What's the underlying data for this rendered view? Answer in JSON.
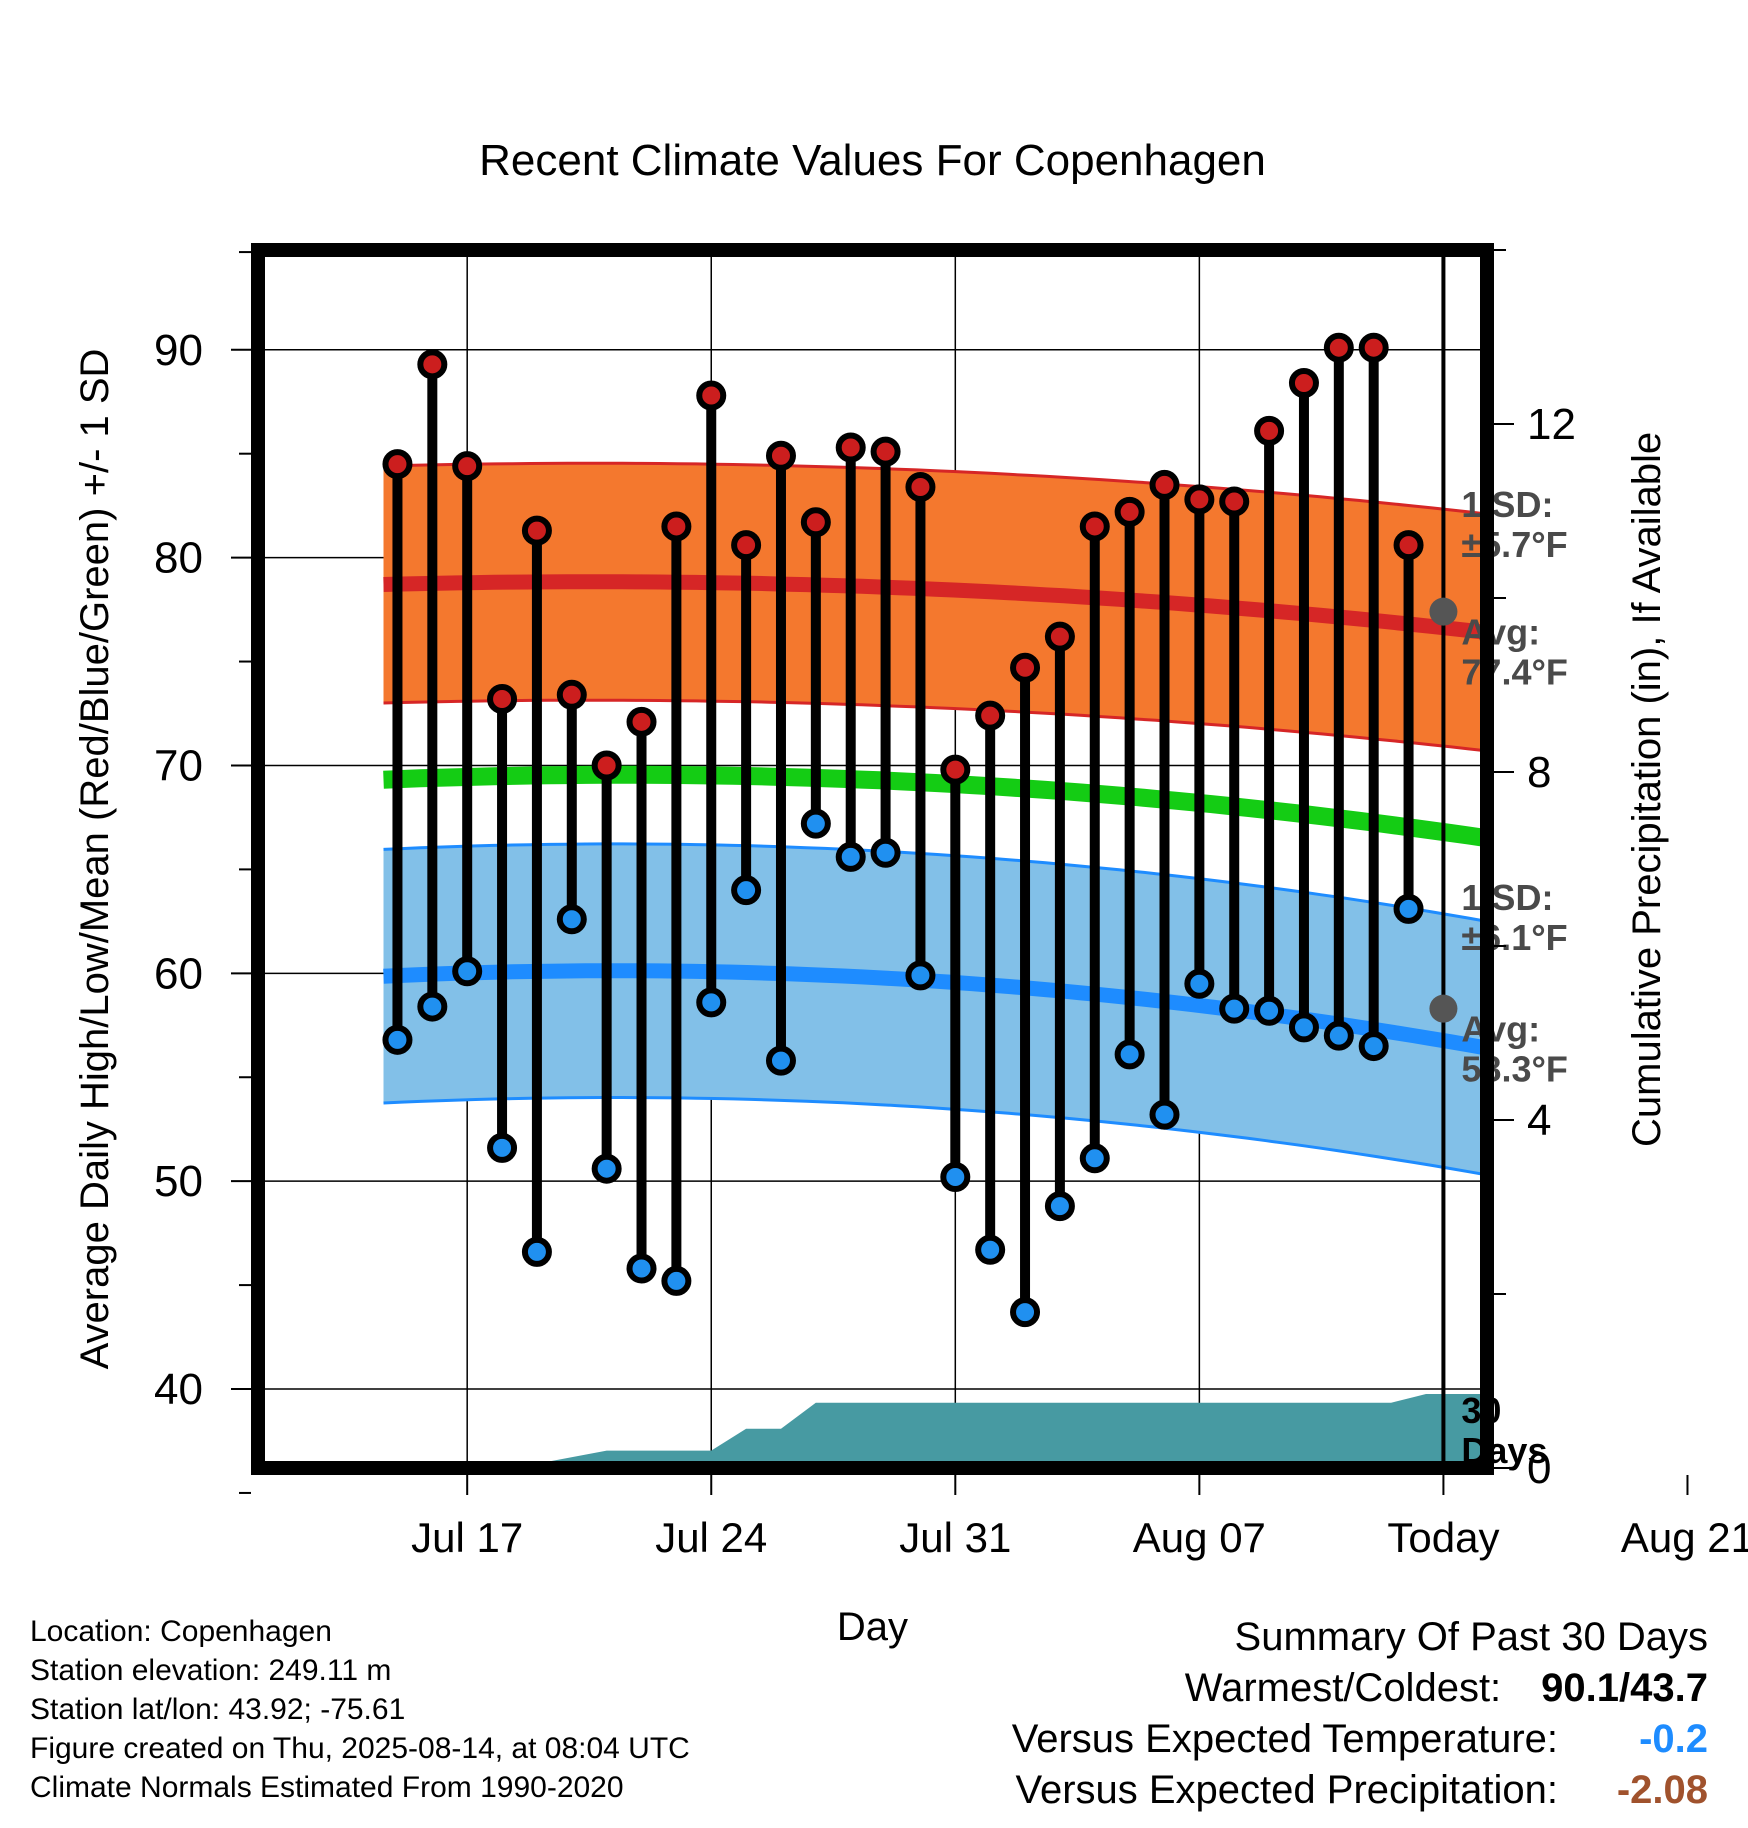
{
  "chart_data": {
    "type": "line",
    "title": "Recent Climate Values For Copenhagen",
    "xlabel": "Day",
    "ylabel_left": "Average Daily High/Low/Mean (Red/Blue/Green) +/- 1 SD",
    "ylabel_right": "Cumulative Precipitation (in), If Available",
    "ylim_left": [
      36.2,
      94.8
    ],
    "ylim_right": [
      0,
      14.0
    ],
    "xlim_days": [
      -34,
      1.25
    ],
    "x_ticks": [
      {
        "day": -28,
        "label": "Jul 17"
      },
      {
        "day": -21,
        "label": "Jul 24"
      },
      {
        "day": -14,
        "label": "Jul 31"
      },
      {
        "day": -7,
        "label": "Aug 07"
      },
      {
        "day": 0,
        "label": "Today"
      },
      {
        "day": 7,
        "label": "Aug 21"
      }
    ],
    "y_ticks_left": [
      40,
      50,
      60,
      70,
      80,
      90
    ],
    "y_ticks_right": [
      0,
      4,
      8,
      12
    ],
    "grid": true,
    "dates": [
      "Jul 15",
      "Jul 16",
      "Jul 17",
      "Jul 18",
      "Jul 19",
      "Jul 20",
      "Jul 21",
      "Jul 22",
      "Jul 23",
      "Jul 24",
      "Jul 25",
      "Jul 26",
      "Jul 27",
      "Jul 28",
      "Jul 29",
      "Jul 30",
      "Jul 31",
      "Aug 01",
      "Aug 02",
      "Aug 03",
      "Aug 04",
      "Aug 05",
      "Aug 06",
      "Aug 07",
      "Aug 08",
      "Aug 09",
      "Aug 10",
      "Aug 11",
      "Aug 12",
      "Aug 13"
    ],
    "daily_high": [
      84.5,
      89.3,
      84.4,
      73.2,
      81.3,
      73.4,
      70.0,
      72.1,
      81.5,
      87.8,
      80.6,
      84.9,
      81.7,
      85.3,
      85.1,
      83.4,
      69.8,
      72.4,
      74.7,
      76.2,
      81.5,
      82.2,
      83.5,
      82.8,
      82.7,
      86.1,
      88.4,
      90.1,
      90.1,
      80.6
    ],
    "daily_low": [
      56.8,
      58.4,
      60.1,
      51.6,
      46.6,
      62.6,
      50.6,
      45.8,
      45.2,
      58.6,
      64.0,
      55.8,
      67.2,
      65.6,
      65.8,
      59.9,
      50.2,
      46.7,
      43.7,
      48.8,
      51.1,
      56.1,
      53.2,
      59.5,
      58.3,
      58.2,
      57.4,
      57.0,
      56.5,
      63.1
    ],
    "normal_high": {
      "start": 78.5,
      "mid": 78.6,
      "today": 77.4,
      "end": 76.4,
      "sd": 5.7
    },
    "normal_mean": {
      "start": 69.0,
      "mid": 69.3,
      "today": 67.9,
      "end": 66.5
    },
    "normal_low": {
      "start": 59.5,
      "mid": 59.8,
      "today": 58.3,
      "end": 56.4,
      "sd": 6.1
    },
    "precip_cumulative_days": [
      -30,
      -28,
      -26,
      -24,
      -22,
      -21,
      -20,
      -19,
      -18,
      -16,
      -14,
      -12,
      -10,
      -8,
      -6,
      -4,
      -2,
      -1.5,
      -0.5,
      0,
      1.25
    ],
    "precip_cumulative_values": [
      0.0,
      0.05,
      0.05,
      0.2,
      0.2,
      0.2,
      0.45,
      0.45,
      0.75,
      0.75,
      0.75,
      0.75,
      0.75,
      0.75,
      0.75,
      0.75,
      0.75,
      0.75,
      0.85,
      0.85,
      0.85
    ],
    "annotations": {
      "high_sd": [
        "1 SD:",
        "±5.7°F"
      ],
      "high_avg": [
        "Avg:",
        "77.4°F"
      ],
      "low_sd": [
        "1 SD:",
        "±6.1°F"
      ],
      "low_avg": [
        "Avg:",
        "58.3°F"
      ],
      "period": [
        "30",
        "Days"
      ]
    },
    "colors": {
      "high_band": "#f4782e",
      "high_line": "#d62626",
      "mean_line": "#14cc14",
      "low_band": "#82c0e8",
      "low_line": "#1e8cff",
      "precip": "#479aa2",
      "high_dot": "#cc1e1e",
      "low_dot": "#2090f0",
      "annotation": "#4a4a4a"
    }
  },
  "footer": {
    "location": "Location: Copenhagen",
    "elevation": "Station elevation: 249.11 m",
    "latlon": "Station lat/lon: 43.92; -75.61",
    "created": "Figure created on Thu, 2025-08-14, at 08:04 UTC",
    "normals": "Climate Normals Estimated From 1990-2020"
  },
  "summary": {
    "title": "Summary Of Past 30 Days",
    "warmest_label": "Warmest/Coldest:",
    "warmest_value": "90.1/43.7",
    "temp_label": "Versus Expected Temperature:",
    "temp_value": "-0.2",
    "temp_color": "#1e8cff",
    "precip_label": "Versus Expected Precipitation:",
    "precip_value": "-2.08",
    "precip_color": "#a0522d"
  }
}
